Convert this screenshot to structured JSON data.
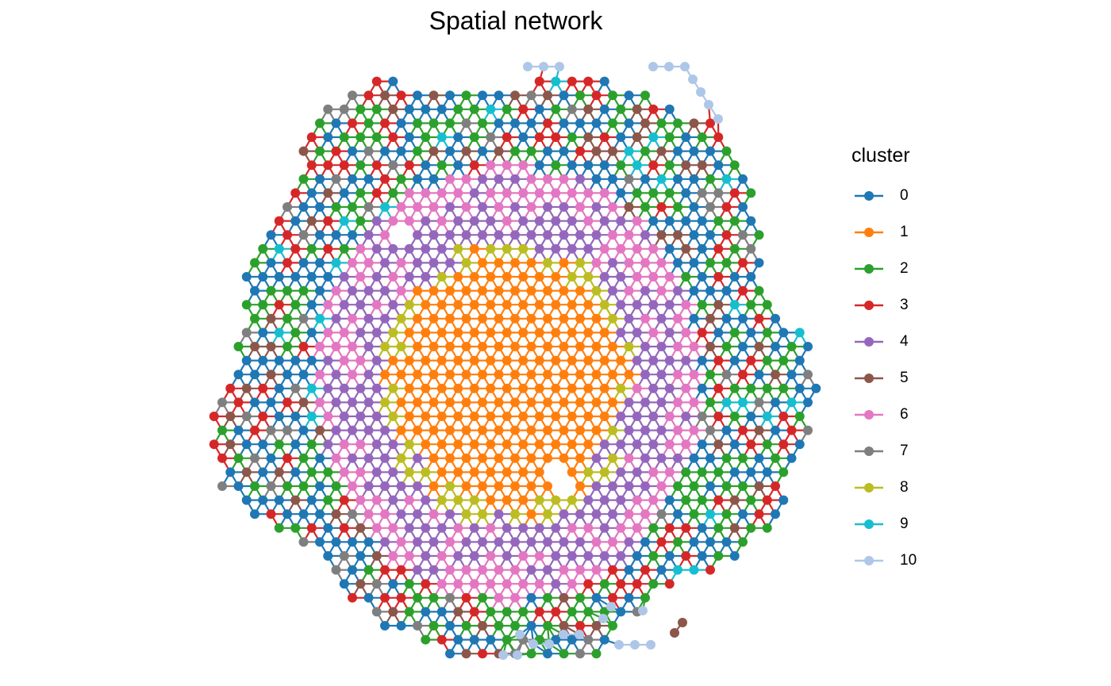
{
  "chart_data": {
    "type": "scatter",
    "title": "Spatial network",
    "legend_title": "cluster",
    "legend_position": "right",
    "axes_visible": false,
    "grid": false,
    "categories": [
      "0",
      "1",
      "2",
      "3",
      "4",
      "5",
      "6",
      "7",
      "8",
      "9",
      "10"
    ],
    "colors": {
      "0": "#1F77B4",
      "1": "#FF7F0E",
      "2": "#2CA02C",
      "3": "#D62728",
      "4": "#9467BD",
      "5": "#8C564B",
      "6": "#E377C2",
      "7": "#7F7F7F",
      "8": "#BCBD22",
      "9": "#17BECF",
      "10": "#AEC7E8"
    },
    "spot_grid": "hexagonal",
    "regions": [
      {
        "cluster": "1",
        "layout": "center"
      },
      {
        "cluster": "8",
        "layout": "ring-around-center"
      },
      {
        "cluster": "4",
        "layout": "inner-ring"
      },
      {
        "cluster": "6",
        "layout": "outer-ring"
      },
      {
        "cluster": "0",
        "layout": "periphery"
      },
      {
        "cluster": "2",
        "layout": "periphery"
      },
      {
        "cluster": "3",
        "layout": "periphery"
      },
      {
        "cluster": "5",
        "layout": "periphery"
      },
      {
        "cluster": "7",
        "layout": "periphery"
      },
      {
        "cluster": "9",
        "layout": "edge-patches"
      },
      {
        "cluster": "10",
        "layout": "edge-outliers"
      }
    ]
  }
}
